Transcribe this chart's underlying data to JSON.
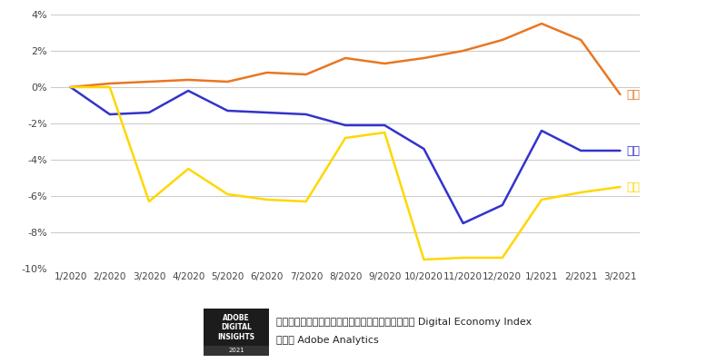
{
  "x_labels": [
    "1/2020",
    "2/2020",
    "3/2020",
    "4/2020",
    "5/2020",
    "6/2020",
    "7/2020",
    "8/2020",
    "9/2020",
    "10/2020",
    "11/2020",
    "12/2020",
    "1/2021",
    "2/2021",
    "3/2021"
  ],
  "japan": [
    0.0,
    0.2,
    0.3,
    0.4,
    0.3,
    0.8,
    0.7,
    1.6,
    1.3,
    1.6,
    2.0,
    2.6,
    3.5,
    2.6,
    -0.4
  ],
  "usa": [
    0.0,
    -1.5,
    -1.4,
    -0.2,
    -1.3,
    -1.4,
    -1.5,
    -2.1,
    -2.1,
    -3.4,
    -7.5,
    -6.5,
    -2.4,
    -3.5,
    -3.5
  ],
  "uk": [
    0.0,
    0.0,
    -6.3,
    -4.5,
    -5.9,
    -6.2,
    -6.3,
    -2.8,
    -2.5,
    -9.5,
    -9.4,
    -9.4,
    -6.2,
    -5.8,
    -5.5
  ],
  "japan_color": "#E87722",
  "usa_color": "#3333CC",
  "uk_color": "#FFD700",
  "background_color": "#FFFFFF",
  "grid_color": "#CCCCCC",
  "ylim": [
    -10,
    4
  ],
  "yticks": [
    -10,
    -8,
    -6,
    -4,
    -2,
    0,
    2,
    4
  ],
  "ytick_labels": [
    "-10%",
    "-8%",
    "-6%",
    "-4%",
    "-2%",
    "0%",
    "2%",
    "4%"
  ],
  "label_japan": "日本",
  "label_usa": "米国",
  "label_uk": "英国",
  "caption_line1": "エレクトロニクス製品の価格動向（米ドル換算）｜ Digital Economy Index",
  "caption_line2": "出典： Adobe Analytics",
  "logo_line1": "ADOBE",
  "logo_line2": "DIGITAL",
  "logo_line3": "INSIGHTS",
  "logo_line4": "2021"
}
